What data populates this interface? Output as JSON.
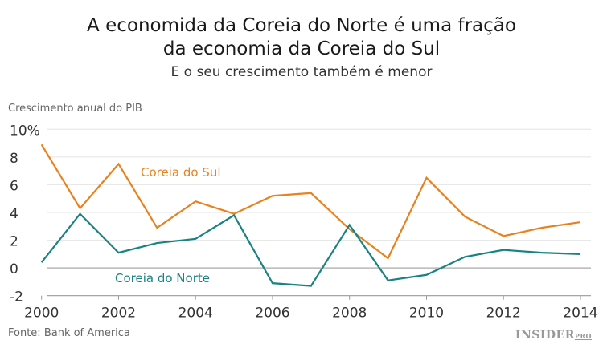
{
  "chart_data": {
    "type": "line",
    "title": "A economida da Coreia do Norte é uma fração da economia da Coreia do Sul",
    "title_lines": [
      "A economida da Coreia do Norte é uma fração",
      "da economia da Coreia do Sul"
    ],
    "subtitle": "E o seu crescimento também é menor",
    "ylabel": "Crescimento anual do PIB",
    "xlabel": "",
    "source": "Fonte: Bank of America",
    "x": [
      2000,
      2001,
      2002,
      2003,
      2004,
      2005,
      2006,
      2007,
      2008,
      2009,
      2010,
      2011,
      2012,
      2013,
      2014
    ],
    "xticks": [
      "2000",
      "2002",
      "2004",
      "2006",
      "2008",
      "2010",
      "2012",
      "2014"
    ],
    "yticks": [
      "10%",
      "8",
      "6",
      "4",
      "2",
      "0",
      "-2"
    ],
    "ylim": [
      -2,
      10
    ],
    "xlim": [
      2000,
      2014
    ],
    "grid": true,
    "series": [
      {
        "name": "Coreia do Sul",
        "color": "#e8821e",
        "values": [
          8.9,
          4.3,
          7.5,
          2.9,
          4.8,
          3.9,
          5.2,
          5.4,
          2.8,
          0.7,
          6.5,
          3.7,
          2.3,
          2.9,
          3.3
        ]
      },
      {
        "name": "Coreia do Norte",
        "color": "#1a8282",
        "values": [
          0.4,
          3.9,
          1.1,
          1.8,
          2.1,
          3.8,
          -1.1,
          -1.3,
          3.1,
          -0.9,
          -0.5,
          0.8,
          1.3,
          1.1,
          1.0
        ]
      }
    ]
  },
  "brand": {
    "logo": "INSIDER",
    "logo_suffix": "PRO"
  }
}
